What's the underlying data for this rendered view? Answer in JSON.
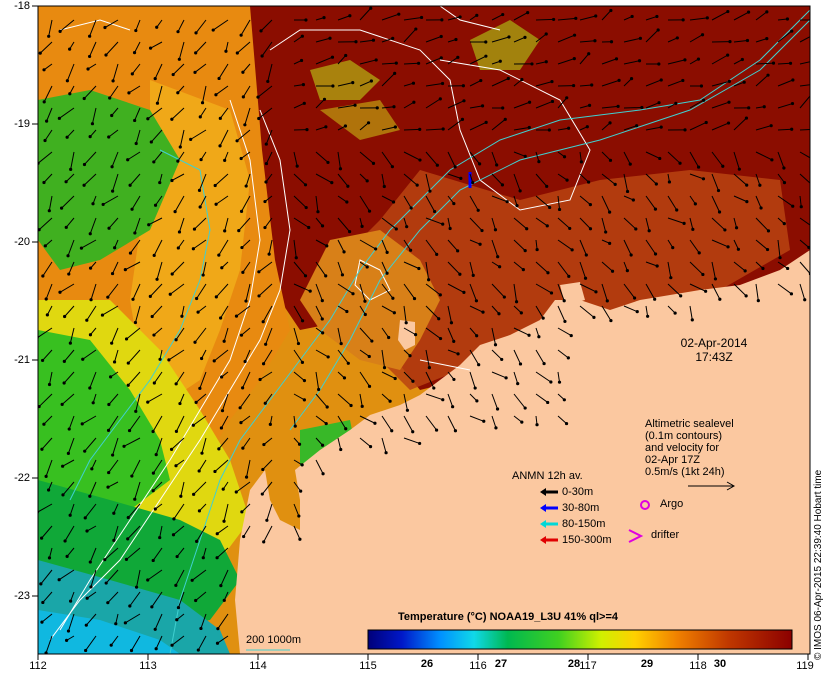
{
  "map": {
    "axis_y_labels": [
      "-18",
      "-19",
      "-20",
      "-21",
      "-22",
      "-23"
    ],
    "axis_x_labels": [
      "112",
      "113",
      "114",
      "115",
      "116",
      "117",
      "118",
      "119"
    ],
    "date": "02-Apr-2014",
    "time": "17:43Z",
    "altimetry_lines": [
      "Altimetric sealevel",
      "(0.1m contours)",
      "and velocity for",
      "02-Apr 17Z",
      "0.5m/s (1kt 24h)"
    ],
    "anmn_title": "ANMN 12h av.",
    "anmn_legend": [
      {
        "label": "0-30m",
        "color": "#000000"
      },
      {
        "label": "30-80m",
        "color": "#0000ff"
      },
      {
        "label": "80-150m",
        "color": "#00d8d8"
      },
      {
        "label": "150-300m",
        "color": "#e00000"
      }
    ],
    "argo_label": "Argo",
    "drifter_label": "drifter",
    "symbol_color": "#e000e0",
    "colorbar_title": "Temperature (°C) NOAA19_L3U 41% ql>=4",
    "colorbar_ticks": [
      "26",
      "27",
      "28",
      "29",
      "30"
    ],
    "scale_label": "200  1000m",
    "credit": "© IMOS 06-Apr-2015 22:39:40 Hobart time",
    "colors": {
      "land": "#fbc8a0",
      "warm": "#8b0d00",
      "contour_white": "#ffffff",
      "contour_cyan": "#40d0d0"
    }
  }
}
